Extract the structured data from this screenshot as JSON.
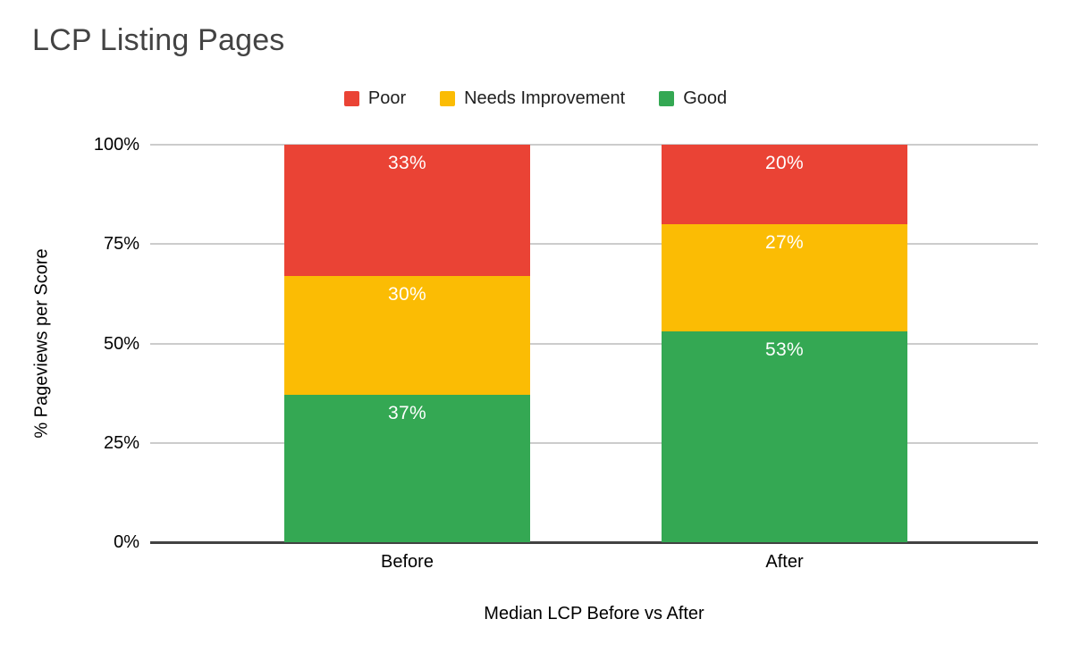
{
  "title": "LCP Listing Pages",
  "legend": {
    "items": [
      {
        "label": "Poor",
        "color": "#EA4335"
      },
      {
        "label": "Needs Improvement",
        "color": "#FBBC04"
      },
      {
        "label": "Good",
        "color": "#34A853"
      }
    ]
  },
  "chart_data": {
    "type": "bar",
    "stacked": true,
    "title": "LCP Listing Pages",
    "xlabel": "Median LCP Before vs After",
    "ylabel": "% Pageviews per Score",
    "categories": [
      "Before",
      "After"
    ],
    "series": [
      {
        "name": "Good",
        "color": "#34A853",
        "values": [
          37,
          53
        ]
      },
      {
        "name": "Needs Improvement",
        "color": "#FBBC04",
        "values": [
          30,
          27
        ]
      },
      {
        "name": "Poor",
        "color": "#EA4335",
        "values": [
          33,
          20
        ]
      }
    ],
    "ylim": [
      0,
      100
    ],
    "ytick_values": [
      0,
      25,
      50,
      75,
      100
    ],
    "ytick_labels": [
      "0%",
      "25%",
      "50%",
      "75%",
      "100%"
    ],
    "grid": true,
    "legend_position": "top",
    "data_labels": {
      "visible": true,
      "suffix": "%",
      "color": "#ffffff"
    }
  },
  "colors": {
    "title_text": "#434343",
    "axis_text": "#000000",
    "legend_text": "#1f1f1f",
    "gridline": "#cccccc",
    "baseline": "#424242",
    "background": "#ffffff"
  }
}
